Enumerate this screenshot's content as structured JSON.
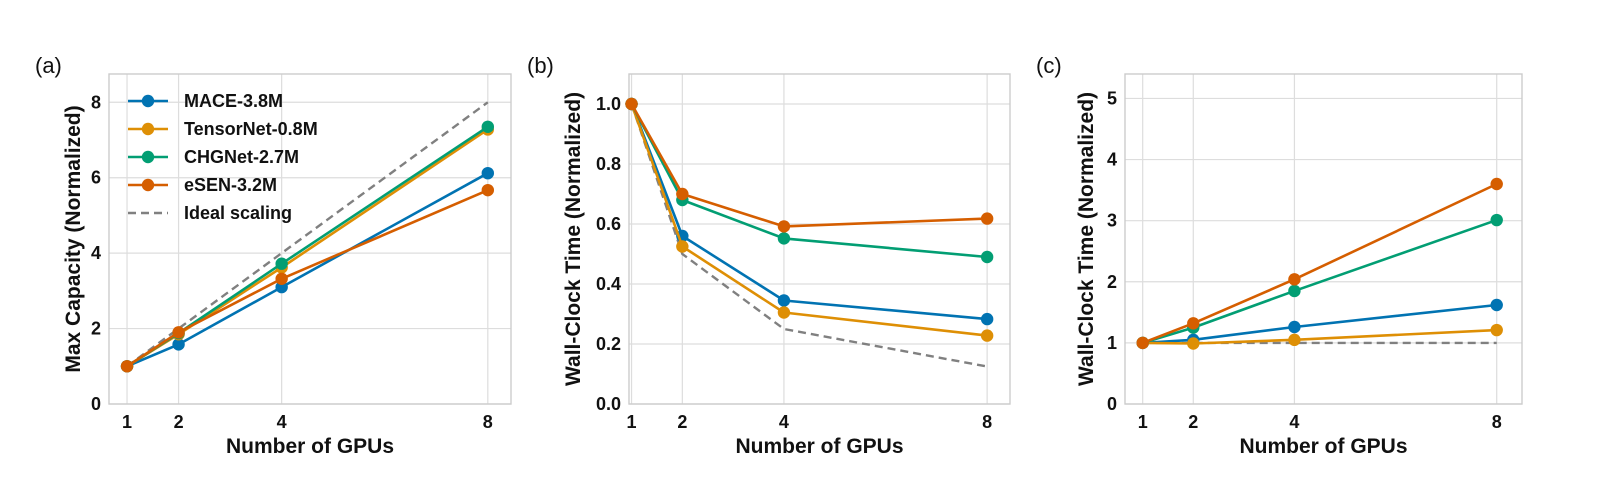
{
  "chart_data": [
    {
      "type": "line",
      "panel_label": "(a)",
      "title": "",
      "xlabel": "Number of GPUs",
      "ylabel": "Max Capacity (Normalized)",
      "x": [
        1,
        2,
        4,
        8
      ],
      "xticks": [
        "1",
        "2",
        "4",
        "8"
      ],
      "yticks": [
        "0",
        "2",
        "4",
        "6",
        "8"
      ],
      "xlim": [
        0.65,
        8.45
      ],
      "ylim": [
        0,
        8.75
      ],
      "grid": true,
      "legend": "top-left",
      "series": [
        {
          "name": "MACE-3.8M",
          "color": "#0173b2",
          "values": [
            1.0,
            1.58,
            3.1,
            6.12
          ]
        },
        {
          "name": "TensorNet-0.8M",
          "color": "#de8f05",
          "values": [
            1.0,
            1.85,
            3.62,
            7.28
          ]
        },
        {
          "name": "CHGNet-2.7M",
          "color": "#029e73",
          "values": [
            1.0,
            1.88,
            3.72,
            7.35
          ]
        },
        {
          "name": "eSEN-3.2M",
          "color": "#d55e00",
          "values": [
            1.0,
            1.9,
            3.32,
            5.67
          ]
        },
        {
          "name": "Ideal scaling",
          "color": "#808080",
          "dashed": true,
          "values": [
            1,
            2,
            4,
            8
          ]
        }
      ]
    },
    {
      "type": "line",
      "panel_label": "(b)",
      "title": "",
      "xlabel": "Number of GPUs",
      "ylabel": "Wall-Clock Time (Normalized)",
      "x": [
        1,
        2,
        4,
        8
      ],
      "xticks": [
        "1",
        "2",
        "4",
        "8"
      ],
      "yticks": [
        "0.0",
        "0.2",
        "0.4",
        "0.6",
        "0.8",
        "1.0"
      ],
      "xlim": [
        0.95,
        8.45
      ],
      "ylim": [
        0,
        1.1
      ],
      "grid": true,
      "series": [
        {
          "name": "MACE-3.8M",
          "color": "#0173b2",
          "values": [
            1.0,
            0.56,
            0.345,
            0.283
          ]
        },
        {
          "name": "TensorNet-0.8M",
          "color": "#de8f05",
          "values": [
            1.0,
            0.525,
            0.305,
            0.228
          ]
        },
        {
          "name": "CHGNet-2.7M",
          "color": "#029e73",
          "values": [
            1.0,
            0.68,
            0.552,
            0.49
          ]
        },
        {
          "name": "eSEN-3.2M",
          "color": "#d55e00",
          "values": [
            1.0,
            0.7,
            0.592,
            0.618
          ]
        },
        {
          "name": "Ideal scaling",
          "color": "#808080",
          "dashed": true,
          "values": [
            1.0,
            0.5,
            0.25,
            0.125
          ]
        }
      ]
    },
    {
      "type": "line",
      "panel_label": "(c)",
      "title": "",
      "xlabel": "Number of GPUs",
      "ylabel": "Wall-Clock Time (Normalized)",
      "x": [
        1,
        2,
        4,
        8
      ],
      "xticks": [
        "1",
        "2",
        "4",
        "8"
      ],
      "yticks": [
        "0",
        "1",
        "2",
        "3",
        "4",
        "5"
      ],
      "xlim": [
        0.65,
        8.5
      ],
      "ylim": [
        0,
        5.4
      ],
      "grid": true,
      "series": [
        {
          "name": "MACE-3.8M",
          "color": "#0173b2",
          "values": [
            1.0,
            1.05,
            1.26,
            1.62
          ]
        },
        {
          "name": "TensorNet-0.8M",
          "color": "#de8f05",
          "values": [
            1.0,
            0.99,
            1.05,
            1.21
          ]
        },
        {
          "name": "CHGNet-2.7M",
          "color": "#029e73",
          "values": [
            1.0,
            1.25,
            1.85,
            3.01
          ]
        },
        {
          "name": "eSEN-3.2M",
          "color": "#d55e00",
          "values": [
            1.0,
            1.32,
            2.04,
            3.6
          ]
        },
        {
          "name": "Ideal scaling",
          "color": "#808080",
          "dashed": true,
          "values": [
            1,
            1,
            1,
            1
          ]
        }
      ]
    }
  ]
}
